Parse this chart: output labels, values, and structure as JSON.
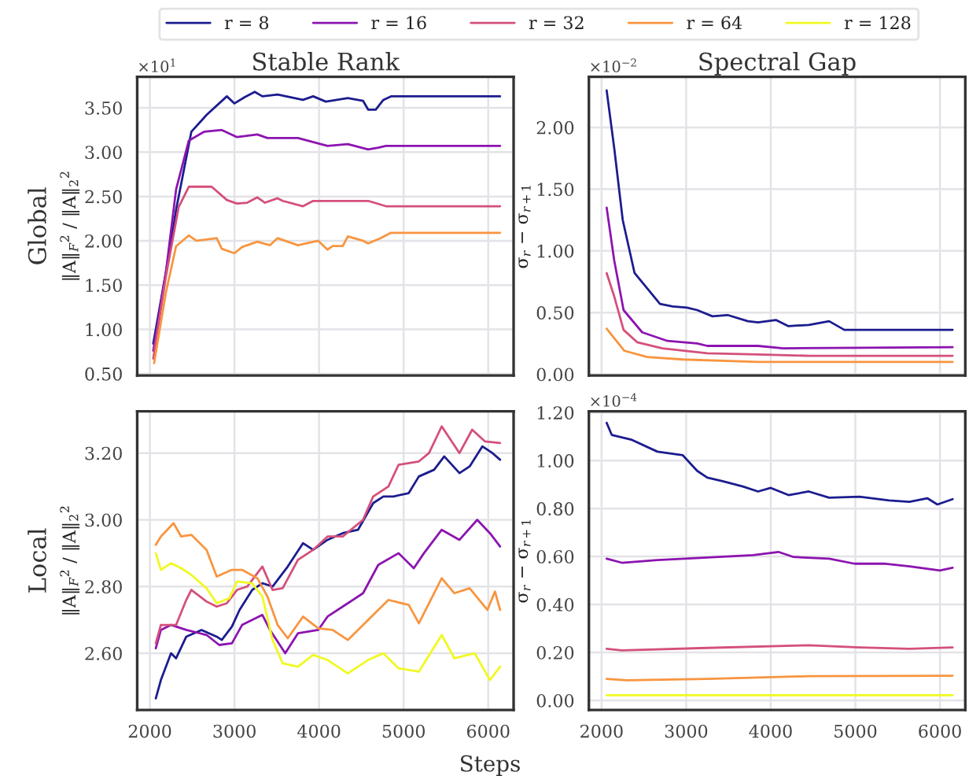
{
  "chart_data": [
    {
      "type": "line",
      "title": "Stable Rank",
      "ylabel": "‖A‖$_{F}$$^{2}$ / ‖A‖$_{2}$$^{2}$",
      "annotations": [
        "Global",
        "×10$^{1}$"
      ],
      "xlim": [
        1850,
        6300
      ],
      "xticks": [
        2000,
        3000,
        4000,
        5000,
        6000
      ],
      "ylim": [
        0.48,
        3.85
      ],
      "yticks": [
        {
          "value": 0.5,
          "label": "0.50"
        },
        {
          "value": 1.0,
          "label": "1.00"
        },
        {
          "value": 1.5,
          "label": "1.50"
        },
        {
          "value": 2.0,
          "label": "2.00"
        },
        {
          "value": 2.5,
          "label": "2.50"
        },
        {
          "value": 3.0,
          "label": "3.00"
        },
        {
          "value": 3.5,
          "label": "3.50"
        }
      ],
      "tick_labels": "y",
      "grid": true,
      "series": [
        {
          "color": "#1c1c8f",
          "x": [
            2040,
            2190,
            2310,
            2490,
            2670,
            2910,
            3000,
            3120,
            3240,
            3330,
            3510,
            3810,
            3930,
            4080,
            4340,
            4520,
            4580,
            4670,
            4760,
            4850,
            6140
          ],
          "values": [
            0.84,
            1.65,
            2.35,
            3.23,
            3.42,
            3.63,
            3.55,
            3.62,
            3.68,
            3.63,
            3.65,
            3.59,
            3.63,
            3.57,
            3.61,
            3.58,
            3.48,
            3.48,
            3.59,
            3.63,
            3.63
          ]
        },
        {
          "color": "#8c14b0",
          "x": [
            2040,
            2190,
            2310,
            2460,
            2640,
            2850,
            3030,
            3270,
            3390,
            3750,
            4100,
            4340,
            4580,
            4700,
            4790,
            6140
          ],
          "values": [
            0.76,
            1.65,
            2.58,
            3.13,
            3.23,
            3.25,
            3.17,
            3.2,
            3.16,
            3.16,
            3.07,
            3.09,
            3.03,
            3.05,
            3.07,
            3.07
          ]
        },
        {
          "color": "#d4507a",
          "x": [
            2040,
            2190,
            2340,
            2460,
            2730,
            2910,
            3030,
            3150,
            3270,
            3360,
            3510,
            3570,
            3810,
            3930,
            4290,
            4580,
            4790,
            6140
          ],
          "values": [
            0.67,
            1.6,
            2.38,
            2.61,
            2.61,
            2.46,
            2.42,
            2.43,
            2.49,
            2.43,
            2.48,
            2.45,
            2.39,
            2.45,
            2.45,
            2.45,
            2.39,
            2.39
          ]
        },
        {
          "color": "#f89540",
          "x": [
            2050,
            2190,
            2310,
            2460,
            2550,
            2790,
            2850,
            3000,
            3090,
            3270,
            3420,
            3510,
            3750,
            3990,
            4100,
            4160,
            4280,
            4340,
            4520,
            4580,
            4730,
            4850,
            6140
          ],
          "values": [
            0.62,
            1.42,
            1.94,
            2.06,
            2.0,
            2.03,
            1.91,
            1.86,
            1.93,
            1.99,
            1.95,
            2.03,
            1.95,
            2.0,
            1.9,
            1.94,
            1.94,
            2.05,
            2.0,
            1.97,
            2.03,
            2.09,
            2.09
          ]
        }
      ]
    },
    {
      "type": "line",
      "title": "Spectral Gap",
      "ylabel": "σ$_{r}$ − σ$_{r+1}$",
      "annotations": [
        "×10$^{−2}$"
      ],
      "xlim": [
        1850,
        6300
      ],
      "xticks": [
        2000,
        3000,
        4000,
        5000,
        6000
      ],
      "ylim": [
        -0.01,
        2.41
      ],
      "yticks": [
        {
          "value": 0.0,
          "label": "0.00"
        },
        {
          "value": 0.5,
          "label": "0.50"
        },
        {
          "value": 1.0,
          "label": "1.00"
        },
        {
          "value": 1.5,
          "label": "1.50"
        },
        {
          "value": 2.0,
          "label": "2.00"
        }
      ],
      "tick_labels": "y",
      "grid": true,
      "series": [
        {
          "color": "#1c1c8f",
          "x": [
            2060,
            2150,
            2250,
            2390,
            2570,
            2690,
            2840,
            3010,
            3130,
            3310,
            3490,
            3730,
            3850,
            4060,
            4210,
            4450,
            4690,
            4870,
            6150
          ],
          "values": [
            2.3,
            1.83,
            1.25,
            0.82,
            0.67,
            0.57,
            0.55,
            0.54,
            0.52,
            0.47,
            0.48,
            0.43,
            0.42,
            0.44,
            0.39,
            0.4,
            0.43,
            0.36,
            0.36
          ]
        },
        {
          "color": "#8c14b0",
          "x": [
            2060,
            2150,
            2260,
            2480,
            2780,
            3130,
            3250,
            3850,
            4150,
            6150
          ],
          "values": [
            1.35,
            0.92,
            0.52,
            0.34,
            0.27,
            0.25,
            0.23,
            0.23,
            0.21,
            0.22
          ]
        },
        {
          "color": "#d4507a",
          "x": [
            2060,
            2150,
            2260,
            2420,
            2720,
            3250,
            3850,
            4450,
            6150
          ],
          "values": [
            0.82,
            0.63,
            0.36,
            0.26,
            0.21,
            0.17,
            0.16,
            0.15,
            0.15
          ]
        },
        {
          "color": "#f89540",
          "x": [
            2060,
            2270,
            2540,
            2960,
            3850,
            6150
          ],
          "values": [
            0.37,
            0.19,
            0.14,
            0.12,
            0.1,
            0.1
          ]
        }
      ]
    },
    {
      "type": "line",
      "xlabel": "Steps",
      "ylabel": "‖A‖$_{F}$$^{2}$ / ‖A‖$_{2}$$^{2}$",
      "annotations": [
        "Local"
      ],
      "legend": "top",
      "xlim": [
        1850,
        6300
      ],
      "xticks": [
        2000,
        3000,
        4000,
        5000,
        6000
      ],
      "ylim": [
        2.43,
        3.325
      ],
      "yticks": [
        {
          "value": 2.6,
          "label": "2.60"
        },
        {
          "value": 2.8,
          "label": "2.80"
        },
        {
          "value": 3.0,
          "label": "3.00"
        },
        {
          "value": 3.2,
          "label": "3.20"
        }
      ],
      "grid": true,
      "series": [
        {
          "name": "r = 8",
          "color": "#1c1c8f",
          "x": [
            2070,
            2130,
            2250,
            2310,
            2430,
            2610,
            2790,
            2850,
            2970,
            3060,
            3210,
            3330,
            3450,
            3630,
            3810,
            3930,
            4100,
            4280,
            4460,
            4640,
            4760,
            4880,
            5060,
            5180,
            5360,
            5480,
            5660,
            5780,
            5930,
            6050,
            6140
          ],
          "values": [
            2.465,
            2.52,
            2.6,
            2.585,
            2.65,
            2.67,
            2.65,
            2.64,
            2.68,
            2.73,
            2.79,
            2.81,
            2.8,
            2.86,
            2.93,
            2.91,
            2.94,
            2.96,
            2.97,
            3.05,
            3.07,
            3.07,
            3.08,
            3.13,
            3.15,
            3.19,
            3.14,
            3.16,
            3.22,
            3.2,
            3.18
          ]
        },
        {
          "name": "r = 16",
          "color": "#8c14b0",
          "x": [
            2070,
            2130,
            2250,
            2310,
            2430,
            2670,
            2820,
            2970,
            3090,
            3330,
            3420,
            3600,
            3750,
            3990,
            4100,
            4340,
            4520,
            4700,
            4940,
            5120,
            5240,
            5450,
            5660,
            5870,
            6020,
            6140
          ],
          "values": [
            2.615,
            2.67,
            2.685,
            2.68,
            2.67,
            2.655,
            2.625,
            2.63,
            2.685,
            2.715,
            2.67,
            2.6,
            2.66,
            2.67,
            2.71,
            2.75,
            2.78,
            2.865,
            2.9,
            2.855,
            2.9,
            2.97,
            2.94,
            3.0,
            2.96,
            2.92
          ]
        },
        {
          "name": "r = 32",
          "color": "#d4507a",
          "x": [
            2070,
            2130,
            2310,
            2430,
            2490,
            2670,
            2790,
            2910,
            3030,
            3150,
            3330,
            3450,
            3570,
            3750,
            3930,
            4100,
            4280,
            4520,
            4640,
            4820,
            4940,
            5180,
            5300,
            5450,
            5660,
            5810,
            5960,
            6140
          ],
          "values": [
            2.63,
            2.685,
            2.685,
            2.76,
            2.79,
            2.755,
            2.74,
            2.75,
            2.79,
            2.8,
            2.86,
            2.79,
            2.795,
            2.88,
            2.91,
            2.95,
            2.95,
            3.0,
            3.07,
            3.1,
            3.165,
            3.175,
            3.2,
            3.28,
            3.2,
            3.27,
            3.235,
            3.23
          ]
        },
        {
          "name": "r = 64",
          "color": "#f89540",
          "x": [
            2070,
            2130,
            2280,
            2370,
            2490,
            2670,
            2790,
            2970,
            3090,
            3270,
            3390,
            3510,
            3630,
            3810,
            3990,
            4160,
            4340,
            4580,
            4820,
            5060,
            5180,
            5450,
            5600,
            5780,
            5990,
            6080,
            6140
          ],
          "values": [
            2.925,
            2.95,
            2.99,
            2.95,
            2.955,
            2.91,
            2.83,
            2.85,
            2.85,
            2.825,
            2.77,
            2.685,
            2.645,
            2.71,
            2.675,
            2.67,
            2.64,
            2.7,
            2.76,
            2.745,
            2.69,
            2.825,
            2.78,
            2.795,
            2.73,
            2.785,
            2.73
          ]
        },
        {
          "name": "r = 128",
          "color": "#f0f921",
          "x": [
            2070,
            2130,
            2250,
            2370,
            2490,
            2670,
            2790,
            2940,
            3030,
            3210,
            3330,
            3450,
            3570,
            3750,
            3930,
            4100,
            4340,
            4580,
            4760,
            4940,
            5180,
            5450,
            5600,
            5840,
            6020,
            6140
          ],
          "values": [
            2.9,
            2.85,
            2.87,
            2.855,
            2.835,
            2.795,
            2.75,
            2.765,
            2.815,
            2.81,
            2.77,
            2.64,
            2.57,
            2.56,
            2.595,
            2.58,
            2.54,
            2.58,
            2.6,
            2.555,
            2.545,
            2.655,
            2.585,
            2.6,
            2.52,
            2.56
          ]
        }
      ]
    },
    {
      "type": "line",
      "ylabel": "σ$_{r}$ − σ$_{r+1}$",
      "annotations": [
        "×10$^{−4}$"
      ],
      "xlim": [
        1850,
        6300
      ],
      "xticks": [
        2000,
        3000,
        4000,
        5000,
        6000
      ],
      "ylim": [
        -0.04,
        1.205
      ],
      "yticks": [
        {
          "value": 0.0,
          "label": "0.00"
        },
        {
          "value": 0.2,
          "label": "0.20"
        },
        {
          "value": 0.4,
          "label": "0.40"
        },
        {
          "value": 0.6,
          "label": "0.60"
        },
        {
          "value": 0.8,
          "label": "0.80"
        },
        {
          "value": 1.0,
          "label": "1.00"
        },
        {
          "value": 1.2,
          "label": "1.20"
        }
      ],
      "grid": true,
      "series": [
        {
          "color": "#1c1c8f",
          "x": [
            2060,
            2120,
            2360,
            2660,
            2960,
            3130,
            3250,
            3430,
            3670,
            3850,
            4000,
            4210,
            4450,
            4690,
            5050,
            5400,
            5640,
            5850,
            5970,
            6150
          ],
          "values": [
            1.157,
            1.107,
            1.086,
            1.037,
            1.022,
            0.957,
            0.929,
            0.914,
            0.892,
            0.871,
            0.886,
            0.856,
            0.871,
            0.845,
            0.849,
            0.834,
            0.828,
            0.843,
            0.817,
            0.839
          ]
        },
        {
          "color": "#8c14b0",
          "x": [
            2060,
            2240,
            2660,
            3250,
            3790,
            4090,
            4270,
            4690,
            4990,
            5340,
            5640,
            6000,
            6150
          ],
          "values": [
            0.591,
            0.574,
            0.585,
            0.596,
            0.606,
            0.619,
            0.598,
            0.591,
            0.57,
            0.57,
            0.559,
            0.542,
            0.553
          ]
        },
        {
          "color": "#d4507a",
          "x": [
            2060,
            2240,
            3250,
            4450,
            5050,
            5640,
            6150
          ],
          "values": [
            0.215,
            0.209,
            0.219,
            0.23,
            0.221,
            0.215,
            0.221
          ]
        },
        {
          "color": "#f89540",
          "x": [
            2060,
            2300,
            3250,
            4450,
            6150
          ],
          "values": [
            0.09,
            0.084,
            0.09,
            0.101,
            0.103
          ]
        },
        {
          "color": "#f0f921",
          "x": [
            2060,
            6150
          ],
          "values": [
            0.022,
            0.022
          ]
        }
      ]
    }
  ]
}
